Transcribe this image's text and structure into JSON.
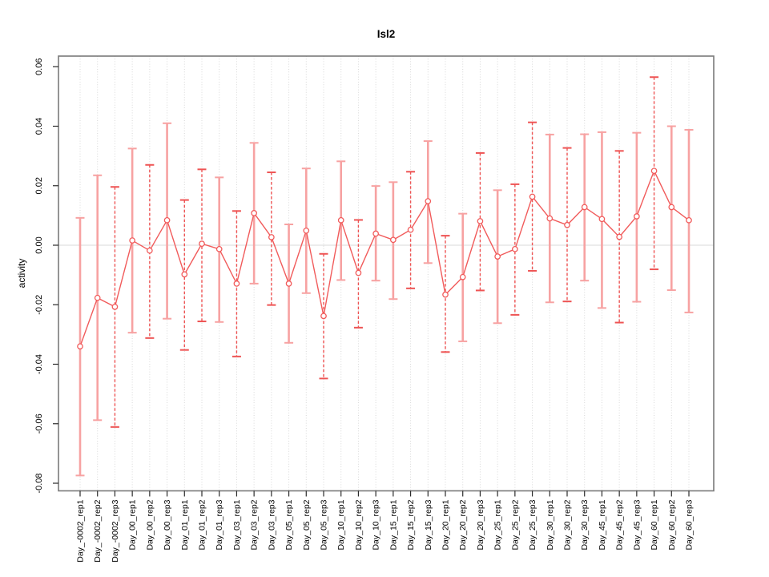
{
  "chart_data": {
    "type": "scatter",
    "subtype": "means-with-error-bars",
    "title": "Isl2",
    "xlabel": "",
    "ylabel": "activity",
    "legend": "none",
    "grid": {
      "vertical_dotted_per_category": true,
      "horizontal_zero_dotted": true
    },
    "ylim": [
      -0.08,
      0.06
    ],
    "yticks": [
      "0.06",
      "0.04",
      "0.02",
      "0.00",
      "-0.02",
      "-0.04",
      "-0.06",
      "-0.08"
    ],
    "categories": [
      "Day_-0002_rep1",
      "Day_-0002_rep2",
      "Day_-0002_rep3",
      "Day_00_rep1",
      "Day_00_rep2",
      "Day_00_rep3",
      "Day_01_rep1",
      "Day_01_rep2",
      "Day_01_rep3",
      "Day_03_rep1",
      "Day_03_rep2",
      "Day_03_rep3",
      "Day_05_rep1",
      "Day_05_rep2",
      "Day_05_rep3",
      "Day_10_rep1",
      "Day_10_rep2",
      "Day_10_rep3",
      "Day_15_rep1",
      "Day_15_rep2",
      "Day_15_rep3",
      "Day_20_rep1",
      "Day_20_rep2",
      "Day_20_rep3",
      "Day_25_rep1",
      "Day_25_rep2",
      "Day_25_rep3",
      "Day_30_rep1",
      "Day_30_rep2",
      "Day_30_rep3",
      "Day_45_rep1",
      "Day_45_rep2",
      "Day_45_rep3",
      "Day_60_rep1",
      "Day_60_rep2",
      "Day_60_rep3"
    ],
    "series": [
      {
        "name": "mean",
        "values": [
          -0.034,
          -0.0177,
          -0.0207,
          0.0016,
          -0.0018,
          0.0084,
          -0.0098,
          0.0005,
          -0.0013,
          -0.0129,
          0.0108,
          0.0027,
          -0.0129,
          0.0049,
          -0.0238,
          0.0084,
          -0.0093,
          0.0039,
          0.0018,
          0.0052,
          0.0148,
          -0.0166,
          -0.0107,
          0.0081,
          -0.0038,
          -0.0013,
          0.0163,
          0.009,
          0.0068,
          0.0128,
          0.0088,
          0.0028,
          0.0097,
          0.025,
          0.0128,
          0.0084
        ]
      },
      {
        "name": "upper",
        "values": [
          0.0092,
          0.0235,
          0.0196,
          0.0325,
          0.027,
          0.041,
          0.0152,
          0.0255,
          0.0228,
          0.0115,
          0.0344,
          0.0245,
          0.007,
          0.0258,
          -0.0029,
          0.0282,
          0.0085,
          0.0199,
          0.0212,
          0.0247,
          0.035,
          0.0032,
          0.0106,
          0.031,
          0.0185,
          0.0205,
          0.0413,
          0.0372,
          0.0327,
          0.0373,
          0.038,
          0.0317,
          0.0378,
          0.0565,
          0.04,
          0.0388
        ]
      },
      {
        "name": "lower",
        "values": [
          -0.0774,
          -0.0588,
          -0.0611,
          -0.0294,
          -0.0312,
          -0.0247,
          -0.0352,
          -0.0256,
          -0.0258,
          -0.0374,
          -0.0129,
          -0.0201,
          -0.0328,
          -0.0161,
          -0.0448,
          -0.0117,
          -0.0277,
          -0.0119,
          -0.0181,
          -0.0145,
          -0.006,
          -0.0359,
          -0.0323,
          -0.0152,
          -0.0262,
          -0.0234,
          -0.0086,
          -0.0192,
          -0.0189,
          -0.0119,
          -0.0211,
          -0.026,
          -0.019,
          -0.0081,
          -0.0151,
          -0.0226
        ]
      }
    ],
    "bar_styles": [
      "solid",
      "solid",
      "dashed",
      "solid",
      "dashed",
      "solid",
      "dashed",
      "dashed",
      "solid",
      "dashed",
      "solid",
      "dashed",
      "solid",
      "solid",
      "dashed",
      "solid",
      "dashed",
      "solid",
      "solid",
      "dashed",
      "solid",
      "dashed",
      "solid",
      "dashed",
      "solid",
      "dashed",
      "dashed",
      "solid",
      "dashed",
      "solid",
      "solid",
      "dashed",
      "solid",
      "dashed",
      "solid",
      "solid"
    ],
    "colors": {
      "point_line_red": "#f15b5b",
      "bar_solid_pink": "#f7a2a2",
      "bar_dashed_red": "#ee5454",
      "grid_gray": "#d8d8d8",
      "box_gray": "#7a7a7a",
      "tick_black": "#2b2b2b",
      "text_black": "#000000"
    }
  }
}
